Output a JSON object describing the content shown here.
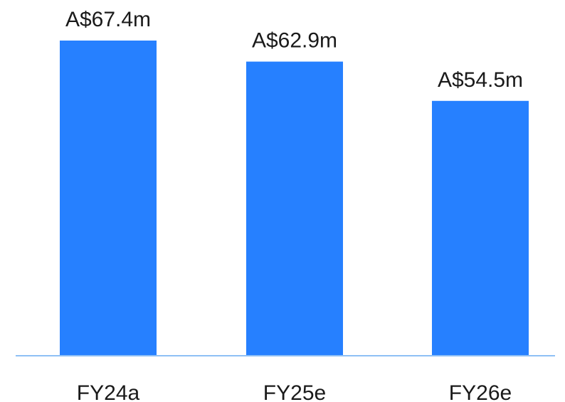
{
  "chart_data": {
    "type": "bar",
    "categories": [
      "FY24a",
      "FY25e",
      "FY26e"
    ],
    "values": [
      67.4,
      62.9,
      54.5
    ],
    "value_labels": [
      "A$67.4m",
      "A$62.9m",
      "A$54.5m"
    ],
    "title": "",
    "xlabel": "",
    "ylabel": "",
    "ylim": [
      0,
      67.4
    ],
    "grid": false,
    "legend": "none",
    "colors": {
      "bar": "#2680ff",
      "axis": "#8fc0f5",
      "text": "#1a1a1a"
    }
  }
}
